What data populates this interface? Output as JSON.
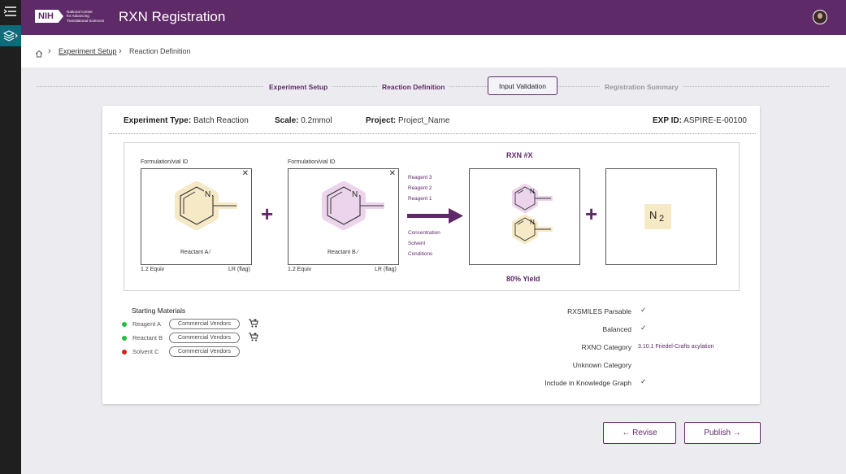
{
  "app": {
    "title": "RXN Registration",
    "logo_short": "NIH",
    "logo_lines": [
      "National Center",
      "for Advancing",
      "Translational Sciences"
    ]
  },
  "breadcrumb": {
    "items": [
      "Experiment Setup",
      "Reaction Definition"
    ]
  },
  "stepper": {
    "steps": [
      "Experiment Setup",
      "Reaction Definition",
      "Input Validation",
      "Registration Summary"
    ],
    "active_index": 2
  },
  "experiment": {
    "type_label": "Experiment Type:",
    "type_value": "Batch Reaction",
    "scale_label": "Scale:",
    "scale_value": "0.2mmol",
    "project_label": "Project:",
    "project_value": "Project_Name",
    "exp_label": "EXP ID:",
    "exp_value": "ASPIRE-E-00100"
  },
  "reaction": {
    "reactants": [
      {
        "header": "Formulation/vial ID",
        "name": "Reactant A",
        "equiv": "1.2 Equiv",
        "flag": "LR (flag)",
        "atom": "N",
        "color": "#f6e9c6"
      },
      {
        "header": "Formulation/vial ID",
        "name": "Reactant B",
        "equiv": "1.2 Equiv",
        "flag": "LR (flag)",
        "atom": "N",
        "color": "#ecd5ec"
      }
    ],
    "reagents": [
      "Reagent 3",
      "Reagent 2",
      "Reagent 1"
    ],
    "conditions": [
      "Concentration",
      "Solvent",
      "Conditions"
    ],
    "product_title": "RXN #X",
    "yield": "80% Yield",
    "byproduct": {
      "symbol": "N",
      "subscript": "2"
    }
  },
  "starting_materials": {
    "title": "Starting Materials",
    "items": [
      {
        "name": "Reagent A",
        "vendor": "Commercial Vendors",
        "status_color": "#1fbf3a",
        "cart": true
      },
      {
        "name": "Reactant B",
        "vendor": "Commercial Vendors",
        "status_color": "#1fbf3a",
        "cart": true
      },
      {
        "name": "Solvent C",
        "vendor": "Commercial Vendors",
        "status_color": "#d81b1b",
        "cart": false
      }
    ]
  },
  "validation": {
    "rxsmiles": {
      "label": "RXSMILES Parsable",
      "mark": "✓"
    },
    "balanced": {
      "label": "Balanced",
      "mark": "✓"
    },
    "rxno": {
      "label": "RXNO Category",
      "value": "3.10.1 Friedel-Crafts acylation"
    },
    "unknown": {
      "label": "Unknown Category"
    },
    "kg": {
      "label": "Include in Knowledge Graph",
      "mark": "✓"
    }
  },
  "actions": {
    "revise": "Revise",
    "publish": "Publish"
  },
  "colors": {
    "brand": "#5f2a68",
    "rail": "#1f1f1f",
    "rail_active": "#0e6b7a"
  }
}
